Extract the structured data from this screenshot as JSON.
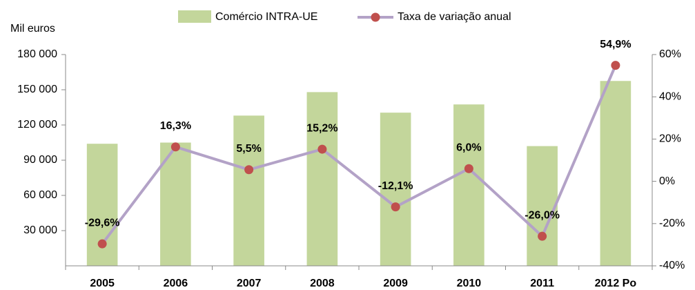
{
  "chart_data": {
    "type": "bar-line",
    "y_axis_label": "Mil euros",
    "categories": [
      "2005",
      "2006",
      "2007",
      "2008",
      "2009",
      "2010",
      "2011",
      "2012 Po"
    ],
    "series": [
      {
        "name": "Comércio INTRA-UE",
        "type": "bar",
        "color": "#c3d69b",
        "values": [
          104000,
          105000,
          128000,
          148000,
          130500,
          137500,
          102000,
          157500
        ]
      },
      {
        "name": "Taxa de variação anual",
        "type": "line",
        "axis": "y2",
        "color": "#b3a2c7",
        "marker_color": "#c0504d",
        "values": [
          -29.6,
          16.3,
          5.5,
          15.2,
          -12.1,
          6.0,
          -26.0,
          54.9
        ],
        "value_labels": [
          "-29,6%",
          "16,3%",
          "5,5%",
          "15,2%",
          "-12,1%",
          "6,0%",
          "-26,0%",
          "54,9%"
        ]
      }
    ],
    "ylim": [
      0,
      180000
    ],
    "yticks": [
      {
        "value": 30000,
        "label": "30 000"
      },
      {
        "value": 60000,
        "label": "60 000"
      },
      {
        "value": 90000,
        "label": "90 000"
      },
      {
        "value": 120000,
        "label": "120 000"
      },
      {
        "value": 150000,
        "label": "150 000"
      },
      {
        "value": 180000,
        "label": "180 000"
      }
    ],
    "y2lim": [
      -40,
      60
    ],
    "y2ticks": [
      {
        "value": -40,
        "label": "-40%"
      },
      {
        "value": -20,
        "label": "-20%"
      },
      {
        "value": 0,
        "label": "0%"
      },
      {
        "value": 20,
        "label": "20%"
      },
      {
        "value": 40,
        "label": "40%"
      },
      {
        "value": 60,
        "label": "60%"
      }
    ],
    "legend": "top"
  }
}
